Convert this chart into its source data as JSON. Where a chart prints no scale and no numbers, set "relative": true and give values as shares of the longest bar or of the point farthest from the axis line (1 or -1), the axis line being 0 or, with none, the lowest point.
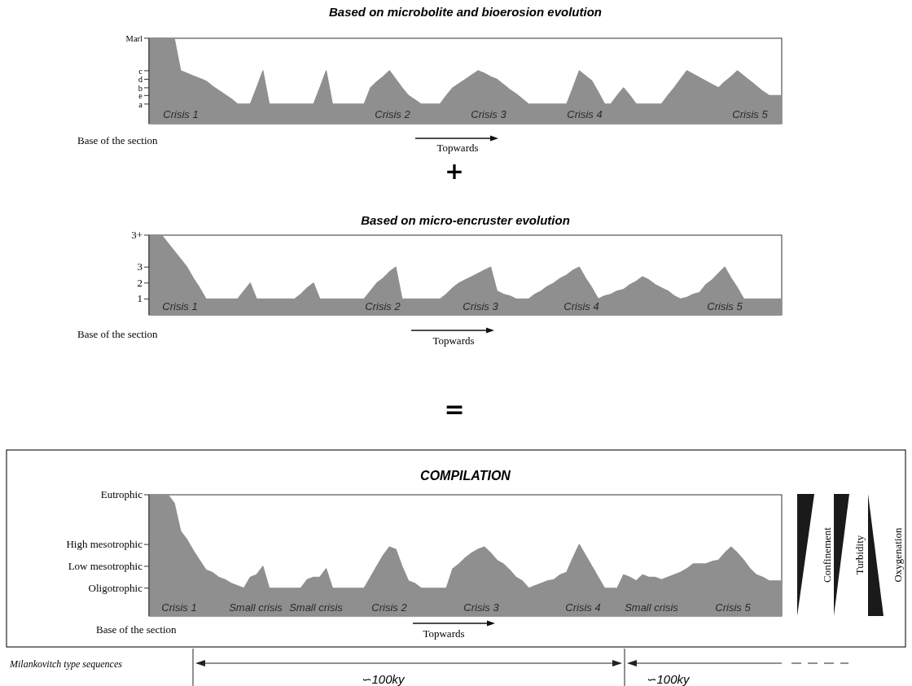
{
  "chart_data": [
    {
      "type": "area",
      "title": "Based on microbolite and bioerosion evolution",
      "color": "#8f8f8f",
      "tick_labels": "y",
      "relative": true,
      "ref_lines": [
        {
          "axis": "y",
          "value": 0.23,
          "label": "a"
        },
        {
          "axis": "y",
          "value": 0.33,
          "label": "e"
        },
        {
          "axis": "y",
          "value": 0.42,
          "label": "b"
        },
        {
          "axis": "y",
          "value": 0.52,
          "label": "d"
        },
        {
          "axis": "y",
          "value": 0.62,
          "label": "c"
        },
        {
          "axis": "y",
          "value": 1,
          "label": "Marl"
        }
      ],
      "categories": [
        null,
        null,
        null,
        null,
        null,
        null,
        null,
        null,
        null,
        null,
        null,
        null,
        null,
        null,
        null,
        null,
        null,
        null,
        null,
        null,
        null,
        null,
        null,
        null,
        null,
        null,
        null,
        null,
        null,
        null,
        null,
        null,
        null,
        null,
        null,
        null,
        null,
        null,
        null,
        null,
        null,
        null,
        null,
        null,
        null,
        null,
        null,
        null,
        null,
        null,
        null,
        null,
        null,
        null,
        null,
        null,
        null,
        null,
        null,
        null,
        null,
        null,
        null,
        null,
        null,
        null,
        null,
        null,
        null,
        null,
        null,
        null,
        null,
        null,
        null,
        null,
        null,
        null,
        null,
        null,
        null,
        null,
        null,
        null,
        null,
        null,
        null,
        null,
        null,
        null,
        null,
        null,
        null,
        null,
        null,
        null,
        null,
        null,
        null,
        null,
        null
      ],
      "values": [
        1,
        1,
        1,
        1,
        1,
        0.62,
        0.59,
        0.56,
        0.53,
        0.5,
        0.44,
        0.39,
        0.34,
        0.29,
        0.23,
        0.23,
        0.23,
        0.42,
        0.62,
        0.23,
        0.23,
        0.23,
        0.23,
        0.23,
        0.23,
        0.23,
        0.23,
        0.42,
        0.62,
        0.23,
        0.23,
        0.23,
        0.23,
        0.23,
        0.23,
        0.42,
        0.49,
        0.55,
        0.62,
        0.52,
        0.42,
        0.33,
        0.28,
        0.23,
        0.23,
        0.23,
        0.23,
        0.33,
        0.42,
        0.47,
        0.52,
        0.57,
        0.62,
        0.59,
        0.55,
        0.52,
        0.46,
        0.4,
        0.35,
        0.29,
        0.23,
        0.23,
        0.23,
        0.23,
        0.23,
        0.23,
        0.23,
        0.42,
        0.62,
        0.56,
        0.5,
        0.37,
        0.23,
        0.23,
        0.33,
        0.42,
        0.33,
        0.23,
        0.23,
        0.23,
        0.23,
        0.23,
        0.33,
        0.42,
        0.52,
        0.62,
        0.58,
        0.54,
        0.5,
        0.46,
        0.42,
        0.49,
        0.55,
        0.62,
        0.56,
        0.5,
        0.44,
        0.38,
        0.33,
        0.33,
        0.33
      ],
      "annotations": [
        "Crisis 1",
        "Crisis 2",
        "Crisis 3",
        "Crisis 4",
        "Crisis 5",
        "Base of the section",
        "Topwards",
        "+"
      ]
    },
    {
      "type": "area",
      "title": "Based on micro-encruster evolution",
      "color": "#8f8f8f",
      "tick_labels": "y",
      "ylim": [
        0,
        5
      ],
      "yticks": [
        1,
        2,
        3,
        {
          "value": 5,
          "label": "3+"
        }
      ],
      "categories": [
        null,
        null,
        null,
        null,
        null,
        null,
        null,
        null,
        null,
        null,
        null,
        null,
        null,
        null,
        null,
        null,
        null,
        null,
        null,
        null,
        null,
        null,
        null,
        null,
        null,
        null,
        null,
        null,
        null,
        null,
        null,
        null,
        null,
        null,
        null,
        null,
        null,
        null,
        null,
        null,
        null,
        null,
        null,
        null,
        null,
        null,
        null,
        null,
        null,
        null,
        null,
        null,
        null,
        null,
        null,
        null,
        null,
        null,
        null,
        null,
        null,
        null,
        null,
        null,
        null,
        null,
        null,
        null,
        null,
        null,
        null,
        null,
        null,
        null,
        null,
        null,
        null,
        null,
        null,
        null,
        null,
        null,
        null,
        null,
        null,
        null,
        null,
        null,
        null,
        null,
        null,
        null,
        null,
        null,
        null,
        null,
        null,
        null,
        null,
        null,
        null
      ],
      "values": [
        5,
        5,
        5,
        4.5,
        4,
        3.5,
        3,
        2.3,
        1.7,
        1,
        1,
        1,
        1,
        1,
        1,
        1.5,
        2,
        1,
        1,
        1,
        1,
        1,
        1,
        1,
        1.3,
        1.7,
        2,
        1,
        1,
        1,
        1,
        1,
        1,
        1,
        1,
        1.5,
        2,
        2.3,
        2.7,
        3,
        1,
        1,
        1,
        1,
        1,
        1,
        1,
        1.3,
        1.7,
        2,
        2.2,
        2.4,
        2.6,
        2.8,
        3,
        1.5,
        1.3,
        1.2,
        1,
        1,
        1,
        1.3,
        1.5,
        1.8,
        2,
        2.3,
        2.5,
        2.8,
        3,
        2.3,
        1.7,
        1,
        1.2,
        1.3,
        1.5,
        1.6,
        1.9,
        2.1,
        2.4,
        2.2,
        1.9,
        1.7,
        1.5,
        1.2,
        1,
        1.1,
        1.3,
        1.4,
        1.9,
        2.2,
        2.6,
        3,
        2.3,
        1.7,
        1,
        1,
        1,
        1,
        1,
        1,
        1
      ],
      "annotations": [
        "Crisis 1",
        "Crisis 2",
        "Crisis 3",
        "Crisis 4",
        "Crisis 5",
        "Base of the section",
        "Topwards",
        "="
      ]
    },
    {
      "type": "area",
      "title": "COMPILATION",
      "color": "#8f8f8f",
      "tick_labels": "y",
      "relative": true,
      "ref_lines": [
        {
          "axis": "y",
          "value": 0.23,
          "label": "Oligotrophic"
        },
        {
          "axis": "y",
          "value": 0.41,
          "label": "Low mesotrophic"
        },
        {
          "axis": "y",
          "value": 0.59,
          "label": "High mesotrophic"
        },
        {
          "axis": "y",
          "value": 1,
          "label": "Eutrophic"
        }
      ],
      "categories": [
        null,
        null,
        null,
        null,
        null,
        null,
        null,
        null,
        null,
        null,
        null,
        null,
        null,
        null,
        null,
        null,
        null,
        null,
        null,
        null,
        null,
        null,
        null,
        null,
        null,
        null,
        null,
        null,
        null,
        null,
        null,
        null,
        null,
        null,
        null,
        null,
        null,
        null,
        null,
        null,
        null,
        null,
        null,
        null,
        null,
        null,
        null,
        null,
        null,
        null,
        null,
        null,
        null,
        null,
        null,
        null,
        null,
        null,
        null,
        null,
        null,
        null,
        null,
        null,
        null,
        null,
        null,
        null,
        null,
        null,
        null,
        null,
        null,
        null,
        null,
        null,
        null,
        null,
        null,
        null,
        null,
        null,
        null,
        null,
        null,
        null,
        null,
        null,
        null,
        null,
        null,
        null,
        null,
        null,
        null,
        null,
        null,
        null,
        null,
        null,
        null
      ],
      "values": [
        1,
        1,
        1,
        1,
        0.93,
        0.7,
        0.63,
        0.54,
        0.46,
        0.38,
        0.36,
        0.32,
        0.3,
        0.27,
        0.25,
        0.23,
        0.32,
        0.34,
        0.41,
        0.23,
        0.23,
        0.23,
        0.23,
        0.23,
        0.23,
        0.3,
        0.32,
        0.32,
        0.39,
        0.23,
        0.23,
        0.23,
        0.23,
        0.23,
        0.23,
        0.32,
        0.41,
        0.5,
        0.57,
        0.55,
        0.41,
        0.29,
        0.27,
        0.23,
        0.23,
        0.23,
        0.23,
        0.23,
        0.39,
        0.43,
        0.48,
        0.52,
        0.55,
        0.57,
        0.52,
        0.46,
        0.43,
        0.38,
        0.32,
        0.29,
        0.23,
        0.25,
        0.27,
        0.29,
        0.3,
        0.34,
        0.36,
        0.48,
        0.59,
        0.5,
        0.41,
        0.32,
        0.23,
        0.23,
        0.23,
        0.34,
        0.32,
        0.29,
        0.34,
        0.32,
        0.32,
        0.3,
        0.32,
        0.34,
        0.36,
        0.39,
        0.43,
        0.43,
        0.43,
        0.45,
        0.46,
        0.52,
        0.57,
        0.52,
        0.46,
        0.39,
        0.34,
        0.32,
        0.29,
        0.29,
        0.29
      ],
      "annotations": [
        "Crisis 1",
        "Small crisis",
        "Small crisis",
        "Crisis 2",
        "Crisis 3",
        "Crisis 4",
        "Small crisis",
        "Crisis 5",
        "Base of the section",
        "Topwards",
        "Confinement",
        "Turbidity",
        "Oxygenation",
        "Milankovitch type sequences",
        "∽100ky",
        "∽100ky"
      ]
    }
  ]
}
